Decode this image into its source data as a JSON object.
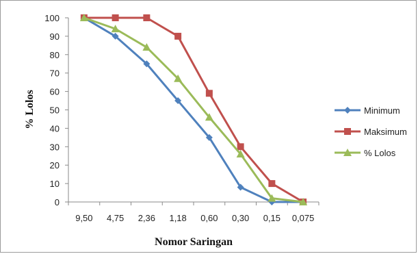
{
  "chart_data": {
    "type": "line",
    "categories": [
      "9,50",
      "4,75",
      "2,36",
      "1,18",
      "0,60",
      "0,30",
      "0,15",
      "0,075"
    ],
    "series": [
      {
        "name": "Minimum",
        "color": "#4f81bd",
        "marker": "diamond",
        "values": [
          100,
          90,
          75,
          55,
          35,
          8,
          0,
          0
        ]
      },
      {
        "name": "Maksimum",
        "color": "#c0504d",
        "marker": "square",
        "values": [
          100,
          100,
          100,
          90,
          59,
          30,
          10,
          0
        ]
      },
      {
        "name": "% Lolos",
        "color": "#9bbb59",
        "marker": "triangle",
        "values": [
          100,
          94,
          84,
          67,
          46,
          26,
          2,
          0
        ]
      }
    ],
    "xlabel": "Nomor Saringan",
    "ylabel": "% Lolos",
    "ylim": [
      0,
      100
    ],
    "yticks": [
      "0",
      "10",
      "20",
      "30",
      "40",
      "50",
      "60",
      "70",
      "80",
      "90",
      "100"
    ],
    "grid": false,
    "legend": "right"
  }
}
